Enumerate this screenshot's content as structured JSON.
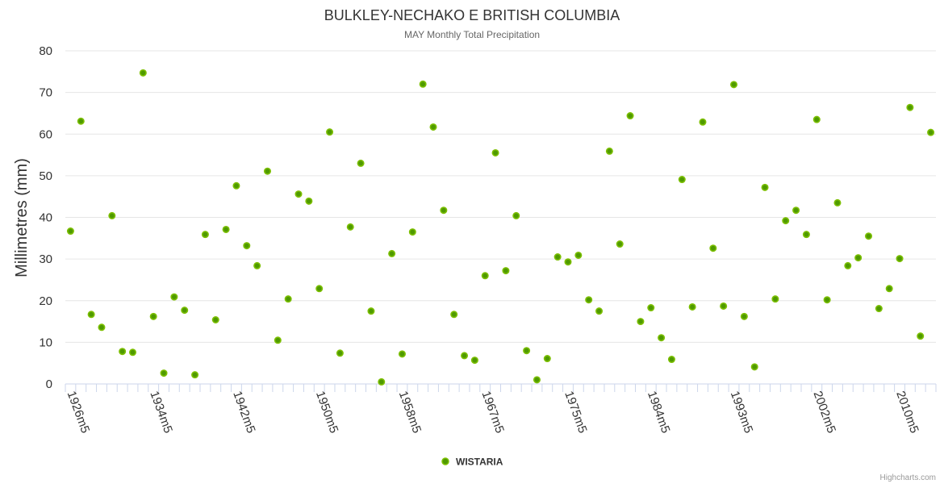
{
  "chart_data": {
    "type": "scatter",
    "title": "BULKLEY-NECHAKO E BRITISH COLUMBIA",
    "subtitle": "MAY Monthly Total Precipitation",
    "ylabel": "Millimetres (mm)",
    "xlabel": "",
    "ylim": [
      0,
      80
    ],
    "yticks": [
      0,
      10,
      20,
      30,
      40,
      50,
      60,
      70,
      80
    ],
    "grid": true,
    "legend_position": "bottom-center",
    "x_tick_interval": 8,
    "categories": [
      "1926m5",
      "1927m5",
      "1928m5",
      "1929m5",
      "1930m5",
      "1931m5",
      "1932m5",
      "1933m5",
      "1934m5",
      "1935m5",
      "1936m5",
      "1937m5",
      "1938m5",
      "1939m5",
      "1940m5",
      "1941m5",
      "1942m5",
      "1943m5",
      "1944m5",
      "1945m5",
      "1946m5",
      "1947m5",
      "1948m5",
      "1949m5",
      "1950m5",
      "1951m5",
      "1952m5",
      "1953m5",
      "1954m5",
      "1955m5",
      "1956m5",
      "1957m5",
      "1958m5",
      "1959m5",
      "1960m5",
      "1961m5",
      "1962m5",
      "1964m5",
      "1965m5",
      "1966m5",
      "1967m5",
      "1968m5",
      "1969m5",
      "1970m5",
      "1971m5",
      "1972m5",
      "1973m5",
      "1974m5",
      "1975m5",
      "1976m5",
      "1977m5",
      "1978m5",
      "1979m5",
      "1981m5",
      "1982m5",
      "1983m5",
      "1984m5",
      "1985m5",
      "1986m5",
      "1987m5",
      "1988m5",
      "1990m5",
      "1991m5",
      "1992m5",
      "1993m5",
      "1994m5",
      "1995m5",
      "1996m5",
      "1998m5",
      "1999m5",
      "2000m5",
      "2001m5",
      "2002m5",
      "2003m5",
      "2004m5",
      "2005m5",
      "2006m5",
      "2007m5",
      "2008m5",
      "2009m5",
      "2010m5",
      "2011m5",
      "2012m5",
      "2013m5"
    ],
    "series": [
      {
        "name": "WISTARIA",
        "color": "#4f9a00",
        "values": [
          36.7,
          63.1,
          16.7,
          13.6,
          40.4,
          7.8,
          7.6,
          74.7,
          16.2,
          2.6,
          20.9,
          17.7,
          2.2,
          35.9,
          15.4,
          37.1,
          47.6,
          33.2,
          28.4,
          51.1,
          10.5,
          20.4,
          45.6,
          43.9,
          22.9,
          60.5,
          7.4,
          37.7,
          53.0,
          17.5,
          0.5,
          31.3,
          7.2,
          36.5,
          72.0,
          61.7,
          41.7,
          16.7,
          6.8,
          5.7,
          26.0,
          55.5,
          27.2,
          40.4,
          8.0,
          1.0,
          6.1,
          30.5,
          29.3,
          30.9,
          20.2,
          17.5,
          55.9,
          33.6,
          64.4,
          15.0,
          18.3,
          11.1,
          5.9,
          49.1,
          18.5,
          62.9,
          32.6,
          18.7,
          71.9,
          16.2,
          4.1,
          47.2,
          20.4,
          39.2,
          41.7,
          35.9,
          63.5,
          20.2,
          43.5,
          28.4,
          30.3,
          35.5,
          18.1,
          22.9,
          30.1,
          66.4,
          11.5,
          60.4
        ]
      }
    ],
    "credits": "Highcharts.com"
  }
}
